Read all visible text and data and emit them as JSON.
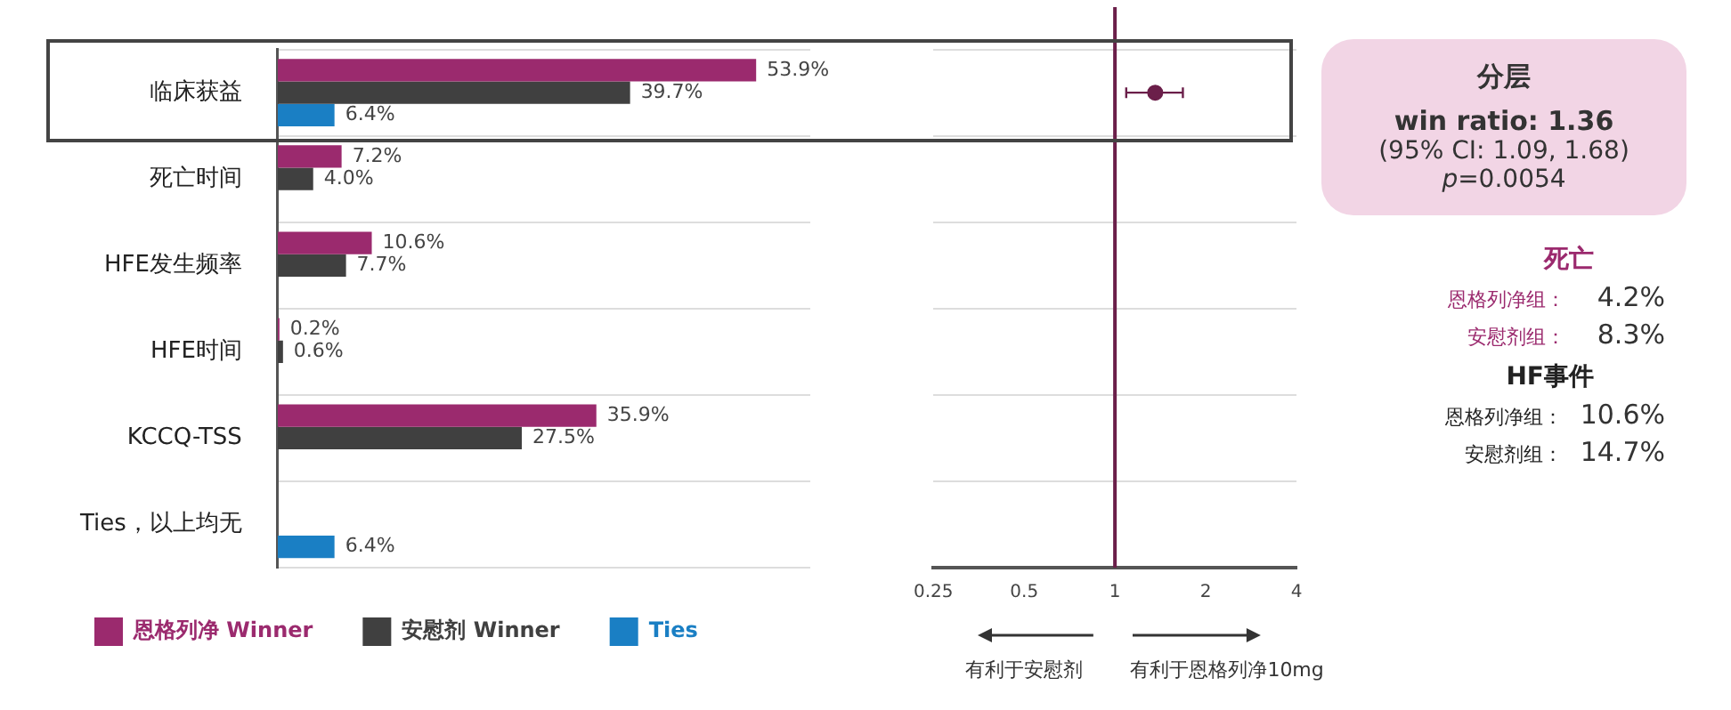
{
  "chart_data": [
    {
      "type": "bar",
      "orientation": "horizontal",
      "categories": [
        "临床获益",
        "死亡时间",
        "HFE发生频率",
        "HFE时间",
        "KCCQ-TSS",
        "Ties，以上均无"
      ],
      "series": [
        {
          "name": "恩格列净 Winner",
          "color": "#9b2a6e",
          "values": [
            53.9,
            7.2,
            10.6,
            0.2,
            35.9,
            null
          ],
          "value_labels": [
            "53.9%",
            "7.2%",
            "10.6%",
            "0.2%",
            "35.9%",
            null
          ]
        },
        {
          "name": "安慰剂 Winner",
          "color": "#404040",
          "values": [
            39.7,
            4.0,
            7.7,
            0.6,
            27.5,
            null
          ],
          "value_labels": [
            "39.7%",
            "4.0%",
            "7.7%",
            "0.6%",
            "27.5%",
            null
          ]
        },
        {
          "name": "Ties",
          "color": "#1a7fc4",
          "values": [
            6.4,
            null,
            null,
            null,
            null,
            6.4
          ],
          "value_labels": [
            "6.4%",
            null,
            null,
            null,
            null,
            "6.4%"
          ]
        }
      ],
      "grid": "y",
      "legend": "bottom left"
    },
    {
      "type": "scatter",
      "orientation": "horizontal",
      "series": [
        {
          "color": "#6b1f4a",
          "values": [
            1.36,
            null,
            null,
            null,
            null,
            null
          ],
          "errors": [
            [
              1.09,
              1.68
            ],
            null,
            null,
            null,
            null,
            null
          ]
        }
      ],
      "log": "x",
      "xlim": [
        0.25,
        4
      ],
      "xticks": [
        0.25,
        0.5,
        1,
        2,
        4
      ],
      "marker": "circle",
      "grid": "y",
      "tick_labels": "x",
      "ref_lines": [
        {
          "axis": "x",
          "value": 1,
          "color": "#6b1f4a"
        }
      ],
      "annotations": [
        "有利于安慰剂",
        "有利于恩格列净10mg"
      ]
    },
    {
      "type": "other",
      "title": "分层",
      "annotations": [
        "win ratio: 1.36",
        "(95% CI: 1.09, 1.68)",
        "p=0.0054",
        "死亡",
        "恩格列净组：",
        "4.2%",
        "安慰剂组：",
        "8.3%",
        "HF事件",
        "恩格列净组：",
        "10.6%",
        "安慰剂组：",
        "14.7%"
      ]
    }
  ]
}
